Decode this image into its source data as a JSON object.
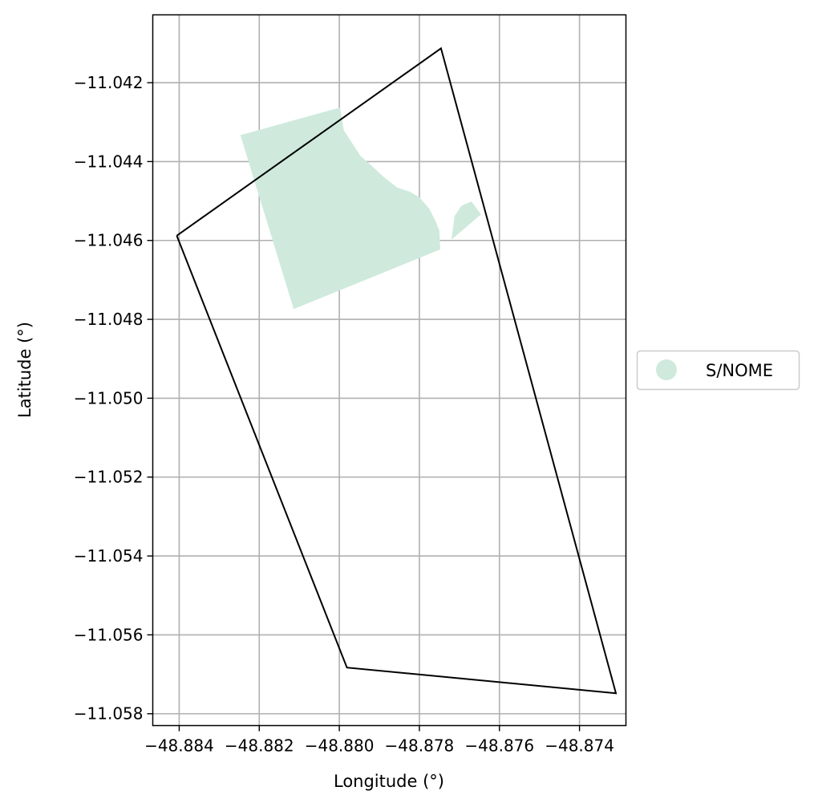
{
  "chart_data": {
    "type": "map",
    "xlabel": "Longitude (°)",
    "ylabel": "Latitude (°)",
    "xlim": [
      -48.88466,
      -48.87284
    ],
    "ylim": [
      -11.0583,
      -11.04028
    ],
    "grid": true,
    "x_ticks": [
      -48.884,
      -48.882,
      -48.88,
      -48.878,
      -48.876,
      -48.874
    ],
    "x_tick_labels": [
      "−48.884",
      "−48.882",
      "−48.880",
      "−48.878",
      "−48.876",
      "−48.874"
    ],
    "y_ticks": [
      -11.042,
      -11.044,
      -11.046,
      -11.048,
      -11.05,
      -11.052,
      -11.054,
      -11.056,
      -11.058
    ],
    "y_tick_labels": [
      "−11.042",
      "−11.044",
      "−11.046",
      "−11.048",
      "−11.050",
      "−11.052",
      "−11.054",
      "−11.056",
      "−11.058"
    ],
    "boundary": {
      "color": "#000000",
      "points": [
        [
          -48.88406,
          -11.04588
        ],
        [
          -48.87746,
          -11.04113
        ],
        [
          -48.87309,
          -11.05748
        ],
        [
          -48.87981,
          -11.05683
        ],
        [
          -48.88406,
          -11.04588
        ]
      ]
    },
    "regions": [
      {
        "category": "S/NOME",
        "color": "#cfeadc",
        "polygons": [
          [
            [
              -48.88247,
              -11.04333
            ],
            [
              -48.87998,
              -11.04263
            ],
            [
              -48.87989,
              -11.0432
            ],
            [
              -48.87965,
              -11.04358
            ],
            [
              -48.87948,
              -11.04385
            ],
            [
              -48.8792,
              -11.0441
            ],
            [
              -48.87888,
              -11.0444
            ],
            [
              -48.87855,
              -11.04466
            ],
            [
              -48.87825,
              -11.04476
            ],
            [
              -48.878,
              -11.0449
            ],
            [
              -48.87775,
              -11.0452
            ],
            [
              -48.8776,
              -11.0455
            ],
            [
              -48.8775,
              -11.04575
            ],
            [
              -48.87748,
              -11.04623
            ],
            [
              -48.88114,
              -11.04774
            ],
            [
              -48.88247,
              -11.04333
            ]
          ],
          [
            [
              -48.8772,
              -11.04598
            ],
            [
              -48.87646,
              -11.04534
            ],
            [
              -48.8767,
              -11.04501
            ],
            [
              -48.87695,
              -11.04512
            ],
            [
              -48.87712,
              -11.04538
            ],
            [
              -48.8772,
              -11.04598
            ]
          ]
        ]
      }
    ],
    "legend": {
      "position": "center-right",
      "entries": [
        {
          "label": "S/NOME",
          "color": "#cfeadc"
        }
      ]
    }
  }
}
